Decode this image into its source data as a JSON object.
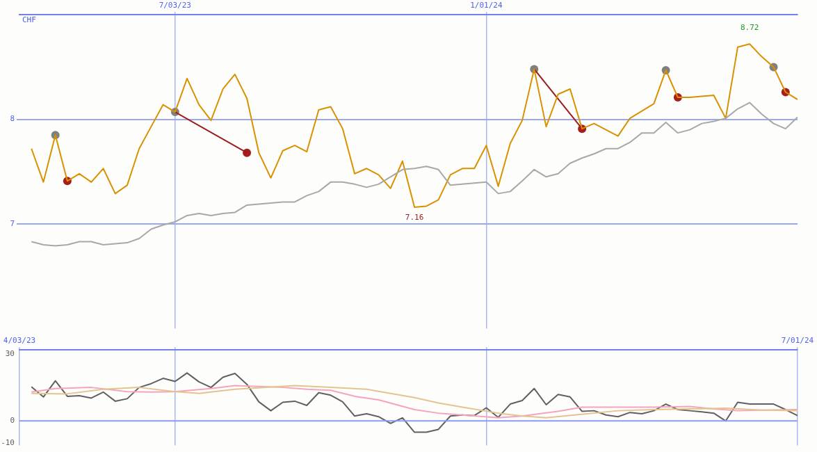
{
  "chart_data": [
    {
      "type": "line",
      "ylabel": "CHF",
      "x": [
        "2023-04-10",
        "2023-04-17",
        "2023-04-24",
        "2023-05-01",
        "2023-05-08",
        "2023-05-15",
        "2023-05-22",
        "2023-05-29",
        "2023-06-05",
        "2023-06-12",
        "2023-06-19",
        "2023-06-26",
        "2023-07-03",
        "2023-07-10",
        "2023-07-17",
        "2023-07-24",
        "2023-07-31",
        "2023-08-07",
        "2023-08-14",
        "2023-08-21",
        "2023-08-28",
        "2023-09-04",
        "2023-09-11",
        "2023-09-18",
        "2023-09-25",
        "2023-10-02",
        "2023-10-09",
        "2023-10-16",
        "2023-10-23",
        "2023-10-30",
        "2023-11-06",
        "2023-11-13",
        "2023-11-20",
        "2023-11-27",
        "2023-12-04",
        "2023-12-11",
        "2023-12-18",
        "2023-12-25",
        "2024-01-01",
        "2024-01-08",
        "2024-01-15",
        "2024-01-22",
        "2024-01-29",
        "2024-02-05",
        "2024-02-12",
        "2024-02-19",
        "2024-02-26",
        "2024-03-04",
        "2024-03-11",
        "2024-03-18",
        "2024-03-25",
        "2024-04-01",
        "2024-04-08",
        "2024-04-15",
        "2024-04-22",
        "2024-04-29",
        "2024-05-06",
        "2024-05-13",
        "2024-05-20",
        "2024-05-27",
        "2024-06-03",
        "2024-06-10",
        "2024-06-17",
        "2024-06-24",
        "2024-07-01"
      ],
      "series": [
        {
          "color": "#a8a8a8",
          "values": [
            6.83,
            6.8,
            6.79,
            6.8,
            6.83,
            6.83,
            6.8,
            6.81,
            6.82,
            6.86,
            6.95,
            6.99,
            7.02,
            7.08,
            7.1,
            7.08,
            7.1,
            7.11,
            7.18,
            7.19,
            7.2,
            7.21,
            7.21,
            7.27,
            7.31,
            7.4,
            7.4,
            7.38,
            7.35,
            7.38,
            7.45,
            7.52,
            7.53,
            7.55,
            7.52,
            7.37,
            7.38,
            7.39,
            7.4,
            7.29,
            7.31,
            7.41,
            7.52,
            7.45,
            7.48,
            7.58,
            7.63,
            7.67,
            7.72,
            7.72,
            7.78,
            7.87,
            7.87,
            7.97,
            7.87,
            7.9,
            7.96,
            7.98,
            8.01,
            8.1,
            8.16,
            8.05,
            7.96,
            7.91,
            8.02
          ]
        },
        {
          "color": "#d99100",
          "values": [
            7.72,
            7.4,
            7.85,
            7.41,
            7.48,
            7.4,
            7.53,
            7.29,
            7.37,
            7.72,
            7.93,
            8.14,
            8.07,
            8.39,
            8.14,
            7.99,
            8.29,
            8.43,
            8.2,
            7.68,
            7.44,
            7.7,
            7.75,
            7.69,
            8.09,
            8.12,
            7.91,
            7.48,
            7.53,
            7.47,
            7.34,
            7.6,
            7.16,
            7.17,
            7.23,
            7.47,
            7.53,
            7.53,
            7.75,
            7.36,
            7.77,
            7.99,
            8.48,
            7.93,
            8.24,
            8.29,
            7.91,
            7.96,
            7.9,
            7.84,
            8.01,
            8.08,
            8.15,
            8.47,
            8.21,
            8.21,
            8.22,
            8.23,
            8.01,
            8.69,
            8.72,
            8.6,
            8.5,
            8.26,
            8.19
          ]
        },
        {
          "type": "line",
          "color": "#9b1b1b",
          "x": [
            "2023-07-03",
            "2023-08-14"
          ],
          "values": [
            8.07,
            7.68
          ]
        },
        {
          "type": "line",
          "color": "#9b1b1b",
          "x": [
            "2024-01-29",
            "2024-02-26"
          ],
          "values": [
            8.48,
            7.91
          ]
        },
        {
          "type": "scatter",
          "color": "#808080",
          "x": [
            "2023-04-24",
            "2023-07-03",
            "2024-01-29",
            "2024-04-15",
            "2024-06-17"
          ],
          "values": [
            7.85,
            8.07,
            8.48,
            8.47,
            8.5
          ]
        },
        {
          "type": "scatter",
          "color": "#a51d1d",
          "x": [
            "2023-05-01",
            "2023-08-14",
            "2024-02-26",
            "2024-04-22",
            "2024-06-24"
          ],
          "values": [
            7.41,
            7.68,
            7.91,
            8.21,
            8.26
          ]
        }
      ],
      "xlim": [
        "2023-04-03",
        "2024-07-01"
      ],
      "xticks": [
        {
          "value": "2023-07-03",
          "label": "7/03/23"
        },
        {
          "value": "2024-01-01",
          "label": "1/01/24"
        }
      ],
      "ylim": [
        6,
        9
      ],
      "yticks": [
        7,
        8
      ],
      "grid": true,
      "legend": false,
      "annotations": [
        {
          "text": "8.72",
          "x": "2024-06-03",
          "y": 8.72
        },
        {
          "text": "7.16",
          "x": "2023-11-20",
          "y": 7.16
        }
      ]
    },
    {
      "type": "line",
      "x": [
        "2023-04-10",
        "2023-04-17",
        "2023-04-24",
        "2023-05-01",
        "2023-05-08",
        "2023-05-15",
        "2023-05-22",
        "2023-05-29",
        "2023-06-05",
        "2023-06-12",
        "2023-06-19",
        "2023-06-26",
        "2023-07-03",
        "2023-07-10",
        "2023-07-17",
        "2023-07-24",
        "2023-07-31",
        "2023-08-07",
        "2023-08-14",
        "2023-08-21",
        "2023-08-28",
        "2023-09-04",
        "2023-09-11",
        "2023-09-18",
        "2023-09-25",
        "2023-10-02",
        "2023-10-09",
        "2023-10-16",
        "2023-10-23",
        "2023-10-30",
        "2023-11-06",
        "2023-11-13",
        "2023-11-20",
        "2023-11-27",
        "2023-12-04",
        "2023-12-11",
        "2023-12-18",
        "2023-12-25",
        "2024-01-01",
        "2024-01-08",
        "2024-01-15",
        "2024-01-22",
        "2024-01-29",
        "2024-02-05",
        "2024-02-12",
        "2024-02-19",
        "2024-02-26",
        "2024-03-04",
        "2024-03-11",
        "2024-03-18",
        "2024-03-25",
        "2024-04-01",
        "2024-04-08",
        "2024-04-15",
        "2024-04-22",
        "2024-04-29",
        "2024-05-06",
        "2024-05-13",
        "2024-05-20",
        "2024-05-27",
        "2024-06-03",
        "2024-06-10",
        "2024-06-17",
        "2024-06-24",
        "2024-07-01"
      ],
      "series": [
        {
          "color": "#e3c48f",
          "x": [
            "2023-04-10",
            "2023-05-01",
            "2023-05-22",
            "2023-06-12",
            "2023-07-03",
            "2023-07-17",
            "2023-08-07",
            "2023-09-11",
            "2023-10-02",
            "2023-10-23",
            "2023-11-20",
            "2023-12-04",
            "2023-12-18",
            "2024-01-08",
            "2024-01-22",
            "2024-02-05",
            "2024-02-26",
            "2024-03-18",
            "2024-04-08",
            "2024-05-20",
            "2024-06-10",
            "2024-07-01"
          ],
          "values": [
            12.4,
            12.2,
            14.3,
            15.1,
            13.2,
            12.4,
            14.3,
            15.9,
            15.1,
            14.3,
            10.5,
            8.1,
            6.2,
            3.5,
            2.2,
            1.4,
            3.0,
            4.6,
            5.1,
            5.7,
            4.9,
            4.6
          ]
        },
        {
          "color": "#f6a3bd",
          "x": [
            "2023-04-10",
            "2023-04-24",
            "2023-05-15",
            "2023-06-05",
            "2023-06-19",
            "2023-07-03",
            "2023-07-24",
            "2023-08-07",
            "2023-09-04",
            "2023-09-18",
            "2023-10-02",
            "2023-10-16",
            "2023-10-30",
            "2023-11-20",
            "2023-12-04",
            "2023-12-18",
            "2024-01-08",
            "2024-01-22",
            "2024-02-12",
            "2024-02-26",
            "2024-03-11",
            "2024-04-08",
            "2024-04-29",
            "2024-05-13",
            "2024-05-27",
            "2024-06-10",
            "2024-07-01"
          ],
          "values": [
            13.0,
            14.6,
            15.1,
            13.2,
            13.0,
            13.2,
            14.6,
            15.9,
            15.1,
            14.3,
            13.8,
            11.1,
            9.5,
            5.1,
            3.5,
            2.7,
            1.4,
            2.2,
            4.3,
            6.2,
            6.2,
            6.2,
            6.5,
            5.4,
            4.6,
            4.9,
            5.1
          ]
        },
        {
          "color": "#606060",
          "values": [
            15.4,
            10.8,
            18.1,
            11.1,
            11.4,
            10.3,
            13.0,
            8.9,
            10.0,
            15.1,
            16.8,
            19.2,
            17.8,
            21.6,
            17.6,
            15.1,
            19.7,
            21.4,
            16.5,
            8.6,
            4.6,
            8.4,
            8.9,
            7.0,
            12.7,
            11.6,
            8.6,
            2.2,
            3.2,
            1.9,
            -1.1,
            1.4,
            -5.1,
            -5.1,
            -3.8,
            2.2,
            2.7,
            2.4,
            5.9,
            1.6,
            7.6,
            9.2,
            14.6,
            7.3,
            11.9,
            10.8,
            4.3,
            4.6,
            2.7,
            1.9,
            3.8,
            3.2,
            4.6,
            7.6,
            5.1,
            4.6,
            4.1,
            3.5,
            0,
            8.4,
            7.6,
            7.6,
            7.6,
            5.1,
            2.4
          ]
        }
      ],
      "xlim": [
        "2023-04-03",
        "2024-07-01"
      ],
      "xticks": [
        {
          "value": "2023-04-03",
          "label": "4/03/23"
        },
        {
          "value": "2023-07-03",
          "label": null
        },
        {
          "value": "2024-01-01",
          "label": null
        },
        {
          "value": "2024-07-01",
          "label": "7/01/24"
        }
      ],
      "ylim": [
        -11,
        32
      ],
      "yticks": [
        -10,
        0,
        30
      ],
      "grid": "x",
      "legend": false,
      "ref_lines": [
        {
          "axis": "y",
          "value": 0
        }
      ]
    }
  ]
}
